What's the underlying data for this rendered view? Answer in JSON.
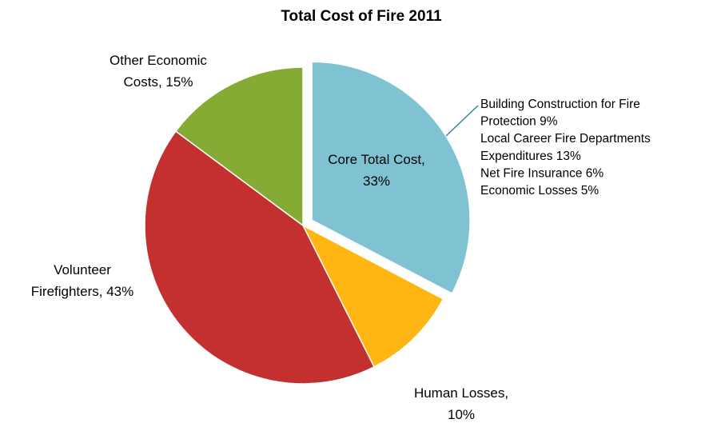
{
  "chart_data": {
    "type": "pie",
    "title": "Total Cost of Fire 2011",
    "slices": [
      {
        "label_lines": [
          "Core Total Cost,",
          "33%"
        ],
        "value": 33,
        "color": "#7fc3d3",
        "exploded": true
      },
      {
        "label_lines": [
          "Human Losses,",
          "10%"
        ],
        "value": 10,
        "color": "#ffb612",
        "exploded": false
      },
      {
        "label_lines": [
          "Volunteer",
          "Firefighters, 43%"
        ],
        "value": 43,
        "color": "#c42f30",
        "exploded": false
      },
      {
        "label_lines": [
          "Other Economic",
          "Costs, 15%"
        ],
        "value": 15,
        "color": "#86ab35",
        "exploded": false
      }
    ],
    "annotation_lines": [
      "Building Construction for Fire",
      "Protection 9%",
      "Local  Career Fire Departments",
      "Expenditures 13%",
      "Net Fire Insurance 6%",
      "Economic Losses 5%"
    ],
    "annotation_color": "#2e7a94"
  }
}
